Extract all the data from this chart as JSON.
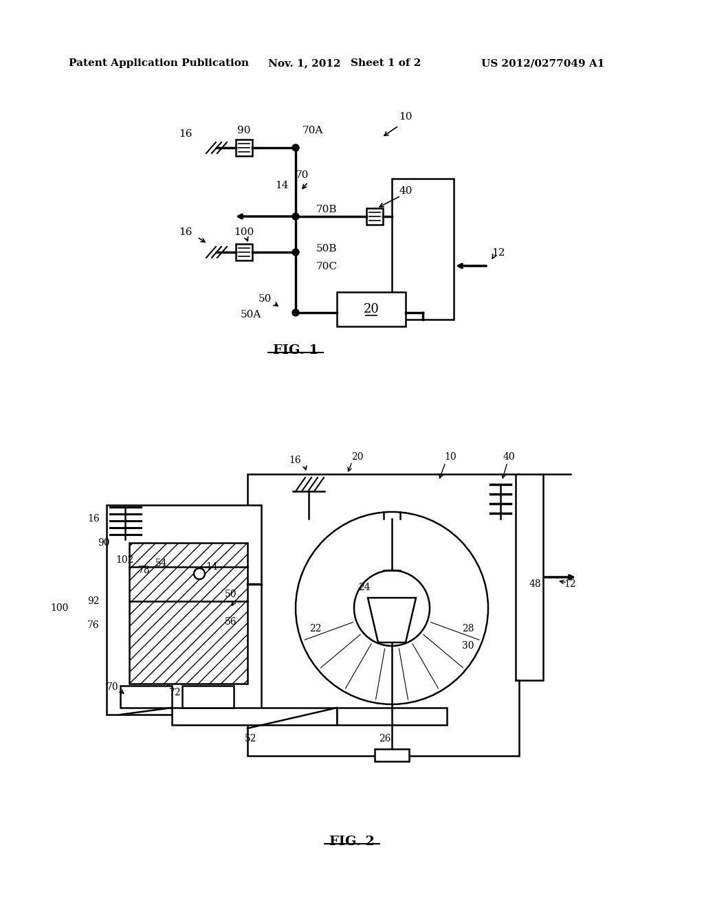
{
  "background_color": "#ffffff",
  "header_text": "Patent Application Publication",
  "header_date": "Nov. 1, 2012",
  "header_sheet": "Sheet 1 of 2",
  "header_patent": "US 2012/0277049 A1",
  "fig1_label": "FIG. 1",
  "fig2_label": "FIG. 2"
}
